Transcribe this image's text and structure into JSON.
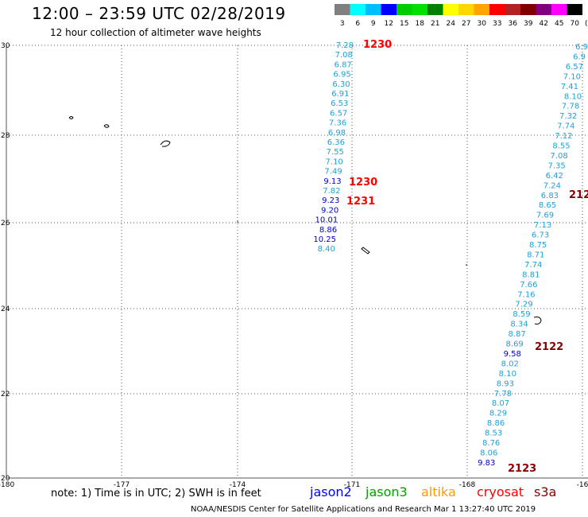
{
  "header": {
    "title": "12:00 – 23:59 UTC 02/28/2019",
    "subtitle": "12 hour collection of altimeter wave heights"
  },
  "color_scale": {
    "unit": "(ft)",
    "bins": [
      {
        "label": "3",
        "color": "#808080"
      },
      {
        "label": "6",
        "color": "#00ffff"
      },
      {
        "label": "9",
        "color": "#00bfff"
      },
      {
        "label": "12",
        "color": "#0000ff"
      },
      {
        "label": "15",
        "color": "#00cc00"
      },
      {
        "label": "18",
        "color": "#00e000"
      },
      {
        "label": "21",
        "color": "#008000"
      },
      {
        "label": "24",
        "color": "#ffff00"
      },
      {
        "label": "27",
        "color": "#ffd700"
      },
      {
        "label": "30",
        "color": "#ffa500"
      },
      {
        "label": "33",
        "color": "#ff0000"
      },
      {
        "label": "36",
        "color": "#b22222"
      },
      {
        "label": "39",
        "color": "#800000"
      },
      {
        "label": "42",
        "color": "#800080"
      },
      {
        "label": "45",
        "color": "#ff00ff"
      },
      {
        "label": "70",
        "color": "#000000"
      }
    ]
  },
  "map": {
    "lon_ticks": [
      "-180",
      "-177",
      "-174",
      "-171",
      "-168",
      "-16"
    ],
    "lat_ticks": [
      "30",
      "28",
      "26",
      "26",
      "24",
      "22",
      "20"
    ],
    "colors": {
      "cyan_text": "#1ea0d8",
      "blue_text": "#0000cc",
      "red_time": "#ff0000",
      "darkred_time": "#8b0000",
      "grid": "#555555"
    },
    "track_left": {
      "values": [
        "7.28",
        "7.08",
        "6.87",
        "6.95",
        "6.30",
        "6.91",
        "6.53",
        "6.57",
        "7.36",
        "6.98",
        "6.36",
        "7.55",
        "7.10",
        "7.49",
        "9.13",
        "7.82",
        "9.23",
        "9.20",
        "10.01",
        "8.86",
        "10.25",
        "8.40"
      ],
      "colors": [
        "c",
        "c",
        "c",
        "c",
        "c",
        "c",
        "c",
        "c",
        "c",
        "c",
        "c",
        "c",
        "c",
        "c",
        "b",
        "c",
        "b",
        "b",
        "b",
        "b",
        "b",
        "c"
      ]
    },
    "track_right": {
      "values": [
        "6.9",
        "6.9",
        "6.57",
        "7.10",
        "7.41",
        "8.10",
        "7.78",
        "7.32",
        "7.74",
        "7.12",
        "8.55",
        "7.08",
        "7.35",
        "6.42",
        "7.24",
        "6.83",
        "8.65",
        "7.69",
        "7.13",
        "6.73",
        "8.75",
        "8.71",
        "7.74",
        "8.81",
        "7.66",
        "7.16",
        "7.29",
        "8.59",
        "8.34",
        "8.87",
        "8.69",
        "9.58",
        "8.02",
        "8.10",
        "8.93",
        "7.78",
        "8.07",
        "8.29",
        "8.86",
        "8.53",
        "8.76",
        "8.06",
        "9.83"
      ],
      "colors": [
        "c",
        "c",
        "c",
        "c",
        "c",
        "c",
        "c",
        "c",
        "c",
        "c",
        "c",
        "c",
        "c",
        "c",
        "c",
        "c",
        "c",
        "c",
        "c",
        "c",
        "c",
        "c",
        "c",
        "c",
        "c",
        "c",
        "c",
        "c",
        "c",
        "c",
        "c",
        "b",
        "c",
        "c",
        "c",
        "c",
        "c",
        "c",
        "c",
        "c",
        "c",
        "c",
        "b"
      ]
    },
    "time_labels": [
      {
        "text": "1230",
        "color": "r"
      },
      {
        "text": "1230",
        "color": "r"
      },
      {
        "text": "1231",
        "color": "r"
      },
      {
        "text": "212",
        "color": "d"
      },
      {
        "text": "2122",
        "color": "d"
      },
      {
        "text": "2123",
        "color": "d"
      }
    ]
  },
  "legend": {
    "note": "note:  1) Time is in UTC;  2) SWH is in feet",
    "missions": [
      {
        "name": "jason2",
        "color": "#0000ff"
      },
      {
        "name": "jason3",
        "color": "#00a000"
      },
      {
        "name": "altika",
        "color": "#ff9900"
      },
      {
        "name": "cryosat",
        "color": "#ff0000"
      },
      {
        "name": "s3a",
        "color": "#8b0000"
      }
    ]
  },
  "footer": "NOAA/NESDIS Center for Satellite Applications and Research    Mar  1 13:27:40 UTC 2019"
}
